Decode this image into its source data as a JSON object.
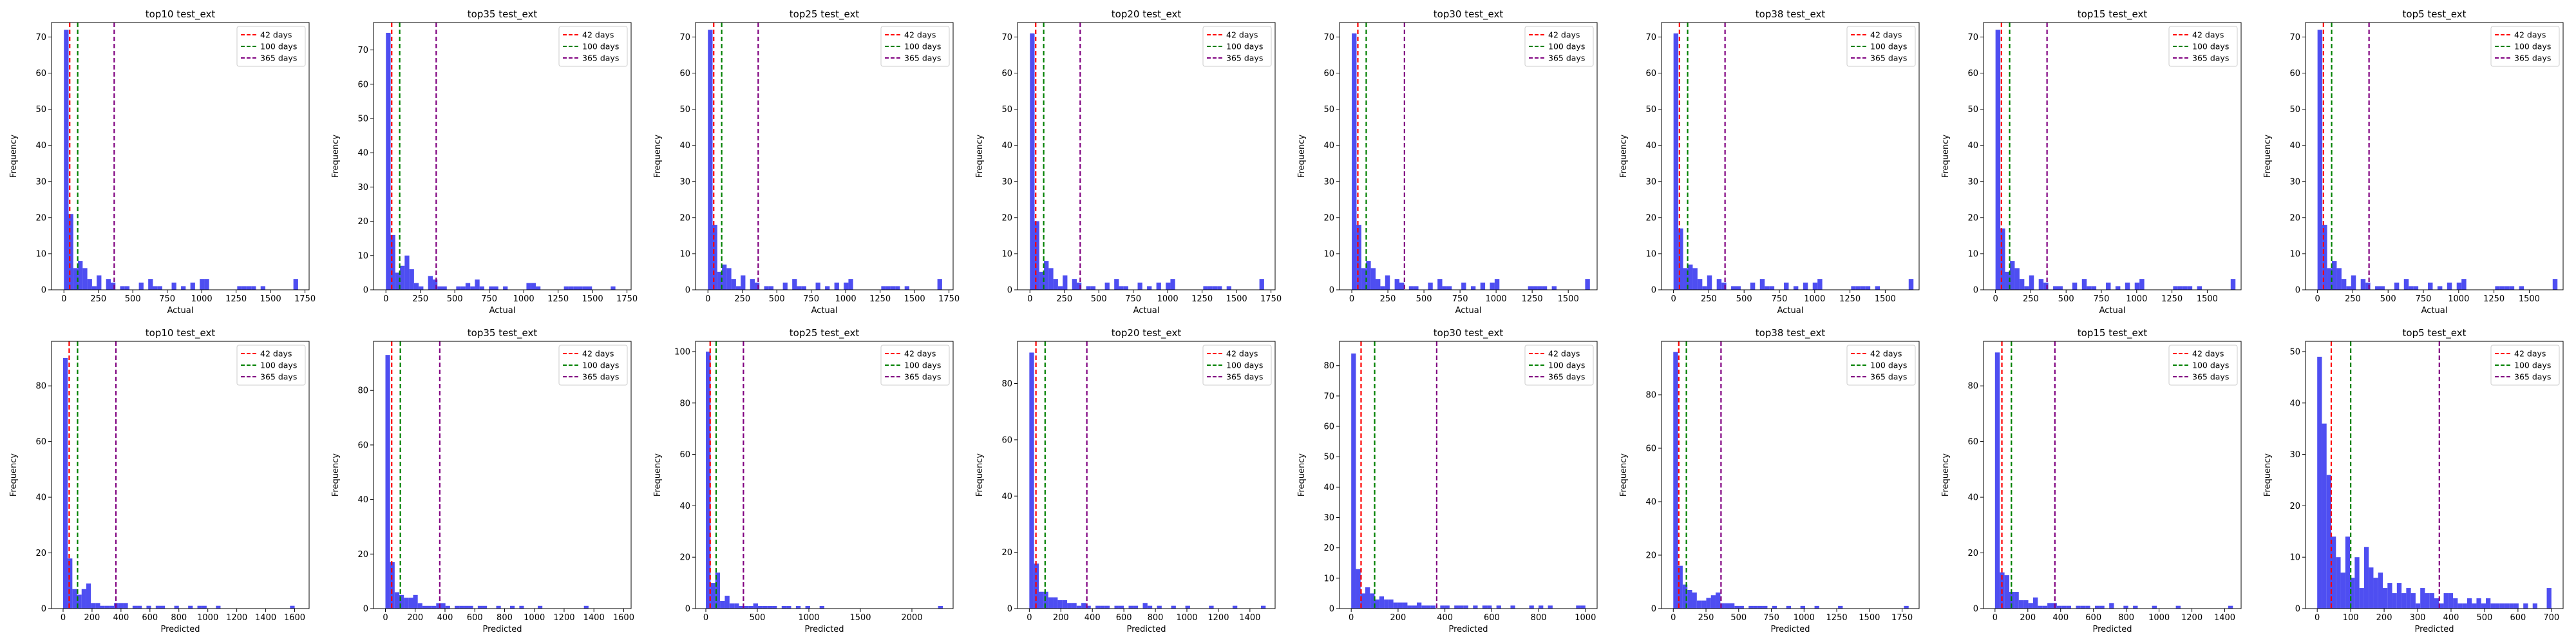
{
  "vline_labels": {
    "d42": "42 days",
    "d100": "100 days",
    "d365": "365 days"
  },
  "colors": {
    "bar": "#3b3bf0",
    "d42": "#ff0000",
    "d100": "#008000",
    "d365": "#800080"
  },
  "chart_data": [
    {
      "type": "bar",
      "title": "top10 test_ext",
      "xlabel": "Actual",
      "ylabel": "Frequency",
      "xlim": [
        -90,
        1780
      ],
      "ylim": [
        0,
        74
      ],
      "xticks": [
        0,
        250,
        500,
        750,
        1000,
        1250,
        1500,
        1750
      ],
      "yticks": [
        0,
        10,
        20,
        30,
        40,
        50,
        60,
        70
      ],
      "bin_width": 34,
      "bin_start": 0,
      "values": [
        72,
        21,
        6,
        8,
        6,
        3,
        1,
        4,
        0,
        3,
        2,
        0,
        1,
        1,
        0,
        0,
        2,
        0,
        3,
        1,
        1,
        0,
        0,
        2,
        0,
        1,
        0,
        2,
        0,
        3,
        3,
        0,
        0,
        0,
        0,
        0,
        0,
        1,
        1,
        1,
        1,
        0,
        1,
        0,
        0,
        0,
        0,
        0,
        0,
        3
      ],
      "legend_position": "top-right"
    },
    {
      "type": "bar",
      "title": "top35 test_ext",
      "xlabel": "Actual",
      "ylabel": "Frequency",
      "xlim": [
        -90,
        1780
      ],
      "ylim": [
        0,
        78
      ],
      "xticks": [
        0,
        250,
        500,
        750,
        1000,
        1250,
        1500,
        1750
      ],
      "yticks": [
        0,
        10,
        20,
        30,
        40,
        50,
        60,
        70
      ],
      "bin_width": 34,
      "bin_start": 0,
      "values": [
        75,
        16,
        5,
        7,
        10,
        6,
        2,
        1,
        0,
        4,
        3,
        1,
        1,
        0,
        0,
        1,
        1,
        2,
        1,
        3,
        1,
        0,
        1,
        1,
        0,
        1,
        0,
        0,
        0,
        0,
        2,
        2,
        1,
        0,
        0,
        0,
        0,
        0,
        1,
        1,
        1,
        1,
        1,
        1,
        0,
        0,
        0,
        0,
        1,
        0
      ],
      "legend_position": "top-right"
    },
    {
      "type": "bar",
      "title": "top25 test_ext",
      "xlabel": "Actual",
      "ylabel": "Frequency",
      "xlim": [
        -90,
        1780
      ],
      "ylim": [
        0,
        74
      ],
      "xticks": [
        0,
        250,
        500,
        750,
        1000,
        1250,
        1500,
        1750
      ],
      "yticks": [
        0,
        10,
        20,
        30,
        40,
        50,
        60,
        70
      ],
      "bin_width": 34,
      "bin_start": 0,
      "values": [
        72,
        18,
        5,
        7,
        6,
        3,
        1,
        4,
        0,
        3,
        2,
        0,
        1,
        1,
        0,
        0,
        2,
        0,
        3,
        1,
        1,
        0,
        0,
        2,
        0,
        1,
        0,
        2,
        0,
        2,
        3,
        0,
        0,
        0,
        0,
        0,
        0,
        1,
        1,
        1,
        1,
        0,
        1,
        0,
        0,
        0,
        0,
        0,
        0,
        3
      ],
      "legend_position": "top-right"
    },
    {
      "type": "bar",
      "title": "top20 test_ext",
      "xlabel": "Actual",
      "ylabel": "Frequency",
      "xlim": [
        -90,
        1780
      ],
      "ylim": [
        0,
        74
      ],
      "xticks": [
        0,
        250,
        500,
        750,
        1000,
        1250,
        1500,
        1750
      ],
      "yticks": [
        0,
        10,
        20,
        30,
        40,
        50,
        60,
        70
      ],
      "bin_width": 34,
      "bin_start": 0,
      "values": [
        71,
        19,
        5,
        8,
        6,
        3,
        1,
        4,
        0,
        3,
        2,
        0,
        1,
        1,
        0,
        0,
        2,
        0,
        3,
        1,
        1,
        0,
        0,
        2,
        0,
        1,
        0,
        2,
        0,
        2,
        3,
        0,
        0,
        0,
        0,
        0,
        0,
        1,
        1,
        1,
        1,
        0,
        1,
        0,
        0,
        0,
        0,
        0,
        0,
        3
      ],
      "legend_position": "top-right"
    },
    {
      "type": "bar",
      "title": "top30 test_ext",
      "xlabel": "Actual",
      "ylabel": "Frequency",
      "xlim": [
        -85,
        1700
      ],
      "ylim": [
        0,
        74
      ],
      "xticks": [
        0,
        250,
        500,
        750,
        1000,
        1250,
        1500
      ],
      "yticks": [
        0,
        10,
        20,
        30,
        40,
        50,
        60,
        70
      ],
      "bin_width": 33,
      "bin_start": 0,
      "values": [
        71,
        18,
        6,
        8,
        6,
        3,
        1,
        4,
        0,
        3,
        2,
        0,
        1,
        1,
        0,
        0,
        2,
        0,
        3,
        1,
        1,
        0,
        0,
        2,
        0,
        1,
        0,
        2,
        0,
        2,
        3,
        0,
        0,
        0,
        0,
        0,
        0,
        1,
        1,
        1,
        1,
        0,
        1,
        0,
        0,
        0,
        0,
        0,
        0,
        3
      ],
      "legend_position": "top-right"
    },
    {
      "type": "bar",
      "title": "top38 test_ext",
      "xlabel": "Actual",
      "ylabel": "Frequency",
      "xlim": [
        -85,
        1740
      ],
      "ylim": [
        0,
        74
      ],
      "xticks": [
        0,
        250,
        500,
        750,
        1000,
        1250,
        1500
      ],
      "yticks": [
        0,
        10,
        20,
        30,
        40,
        50,
        60,
        70
      ],
      "bin_width": 34,
      "bin_start": 0,
      "values": [
        71,
        17,
        6,
        7,
        6,
        3,
        1,
        4,
        0,
        3,
        2,
        0,
        1,
        1,
        0,
        0,
        2,
        0,
        3,
        1,
        1,
        0,
        0,
        2,
        0,
        1,
        0,
        2,
        0,
        2,
        3,
        0,
        0,
        0,
        0,
        0,
        0,
        1,
        1,
        1,
        1,
        0,
        1,
        0,
        0,
        0,
        0,
        0,
        0,
        3
      ],
      "legend_position": "top-right"
    },
    {
      "type": "bar",
      "title": "top15 test_ext",
      "xlabel": "Actual",
      "ylabel": "Frequency",
      "xlim": [
        -85,
        1740
      ],
      "ylim": [
        0,
        74
      ],
      "xticks": [
        0,
        250,
        500,
        750,
        1000,
        1250,
        1500
      ],
      "yticks": [
        0,
        10,
        20,
        30,
        40,
        50,
        60,
        70
      ],
      "bin_width": 34,
      "bin_start": 0,
      "values": [
        72,
        17,
        5,
        8,
        6,
        3,
        1,
        4,
        0,
        3,
        2,
        0,
        1,
        1,
        0,
        0,
        2,
        0,
        3,
        1,
        1,
        0,
        0,
        2,
        0,
        1,
        0,
        2,
        0,
        2,
        3,
        0,
        0,
        0,
        0,
        0,
        0,
        1,
        1,
        1,
        1,
        0,
        1,
        0,
        0,
        0,
        0,
        0,
        0,
        3
      ],
      "legend_position": "top-right"
    },
    {
      "type": "bar",
      "title": "top5 test_ext",
      "xlabel": "Actual",
      "ylabel": "Frequency",
      "xlim": [
        -85,
        1740
      ],
      "ylim": [
        0,
        74
      ],
      "xticks": [
        0,
        250,
        500,
        750,
        1000,
        1250,
        1500
      ],
      "yticks": [
        0,
        10,
        20,
        30,
        40,
        50,
        60,
        70
      ],
      "bin_width": 34,
      "bin_start": 0,
      "values": [
        72,
        18,
        6,
        8,
        6,
        3,
        1,
        4,
        0,
        3,
        2,
        0,
        1,
        1,
        0,
        0,
        2,
        0,
        3,
        1,
        1,
        0,
        0,
        2,
        0,
        1,
        0,
        2,
        0,
        2,
        3,
        0,
        0,
        0,
        0,
        0,
        0,
        1,
        1,
        1,
        1,
        0,
        1,
        0,
        0,
        0,
        0,
        0,
        0,
        3
      ],
      "legend_position": "top-right"
    },
    {
      "type": "bar",
      "title": "top10 test_ext",
      "xlabel": "Predicted",
      "ylabel": "Frequency",
      "xlim": [
        -80,
        1700
      ],
      "ylim": [
        0,
        96
      ],
      "xticks": [
        0,
        200,
        400,
        600,
        800,
        1000,
        1200,
        1400,
        1600
      ],
      "yticks": [
        0,
        20,
        40,
        60,
        80
      ],
      "bin_width": 32,
      "bin_start": 0,
      "values": [
        90,
        18,
        7,
        5,
        7,
        9,
        2,
        2,
        1,
        1,
        1,
        2,
        2,
        2,
        0,
        1,
        1,
        0,
        1,
        0,
        1,
        1,
        0,
        0,
        1,
        0,
        0,
        1,
        0,
        1,
        1,
        0,
        0,
        1,
        0,
        0,
        0,
        0,
        0,
        0,
        0,
        0,
        0,
        0,
        0,
        0,
        0,
        0,
        0,
        1
      ],
      "legend_position": "top-right"
    },
    {
      "type": "bar",
      "title": "top35 test_ext",
      "xlabel": "Predicted",
      "ylabel": "Frequency",
      "xlim": [
        -80,
        1650
      ],
      "ylim": [
        0,
        98
      ],
      "xticks": [
        0,
        200,
        400,
        600,
        800,
        1000,
        1200,
        1400,
        1600
      ],
      "yticks": [
        0,
        20,
        40,
        60,
        80
      ],
      "bin_width": 31,
      "bin_start": 0,
      "values": [
        93,
        17,
        6,
        5,
        4,
        4,
        5,
        2,
        1,
        1,
        1,
        2,
        2,
        1,
        0,
        1,
        1,
        1,
        1,
        0,
        1,
        1,
        0,
        0,
        1,
        0,
        0,
        1,
        0,
        1,
        0,
        0,
        0,
        1,
        0,
        0,
        0,
        0,
        0,
        0,
        0,
        0,
        0,
        1,
        0,
        0,
        0,
        0,
        0,
        0
      ],
      "legend_position": "top-right"
    },
    {
      "type": "bar",
      "title": "top25 test_ext",
      "xlabel": "Predicted",
      "ylabel": "Frequency",
      "xlim": [
        -100,
        2400
      ],
      "ylim": [
        0,
        104
      ],
      "xticks": [
        0,
        500,
        1000,
        1500,
        2000
      ],
      "yticks": [
        0,
        20,
        40,
        60,
        80,
        100
      ],
      "bin_width": 46,
      "bin_start": 0,
      "values": [
        100,
        10,
        14,
        3,
        5,
        2,
        2,
        1,
        1,
        1,
        2,
        1,
        1,
        1,
        1,
        0,
        1,
        1,
        0,
        1,
        0,
        1,
        0,
        0,
        1,
        0,
        0,
        0,
        0,
        0,
        0,
        0,
        0,
        0,
        0,
        0,
        0,
        0,
        0,
        0,
        0,
        0,
        0,
        0,
        0,
        0,
        0,
        0,
        0,
        1
      ],
      "legend_position": "top-right"
    },
    {
      "type": "bar",
      "title": "top20 test_ext",
      "xlabel": "Predicted",
      "ylabel": "Frequency",
      "xlim": [
        -75,
        1560
      ],
      "ylim": [
        0,
        95
      ],
      "xticks": [
        0,
        200,
        400,
        600,
        800,
        1000,
        1200,
        1400
      ],
      "yticks": [
        0,
        20,
        40,
        60,
        80
      ],
      "bin_width": 30,
      "bin_start": 0,
      "values": [
        91,
        16,
        6,
        6,
        4,
        4,
        3,
        3,
        2,
        2,
        1,
        2,
        1,
        0,
        1,
        1,
        1,
        0,
        1,
        1,
        0,
        1,
        1,
        0,
        2,
        1,
        0,
        1,
        0,
        0,
        1,
        0,
        0,
        1,
        0,
        0,
        0,
        0,
        1,
        0,
        0,
        0,
        0,
        1,
        0,
        0,
        0,
        0,
        0,
        1
      ],
      "legend_position": "top-right"
    },
    {
      "type": "bar",
      "title": "top30 test_ext",
      "xlabel": "Predicted",
      "ylabel": "Frequency",
      "xlim": [
        -50,
        1050
      ],
      "ylim": [
        0,
        88
      ],
      "xticks": [
        0,
        200,
        400,
        600,
        800,
        1000
      ],
      "yticks": [
        0,
        10,
        20,
        30,
        40,
        50,
        60,
        70,
        80
      ],
      "bin_width": 20,
      "bin_start": 0,
      "values": [
        84,
        13,
        5,
        7,
        5,
        3,
        4,
        3,
        3,
        2,
        2,
        2,
        1,
        1,
        2,
        1,
        1,
        1,
        0,
        1,
        1,
        0,
        1,
        1,
        1,
        0,
        1,
        0,
        1,
        1,
        0,
        1,
        0,
        0,
        1,
        0,
        0,
        0,
        1,
        0,
        1,
        0,
        1,
        0,
        0,
        0,
        0,
        0,
        1,
        1
      ],
      "legend_position": "top-right"
    },
    {
      "type": "bar",
      "title": "top38 test_ext",
      "xlabel": "Predicted",
      "ylabel": "Frequency",
      "xlim": [
        -90,
        1880
      ],
      "ylim": [
        0,
        100
      ],
      "xticks": [
        0,
        250,
        500,
        750,
        1000,
        1250,
        1500,
        1750
      ],
      "yticks": [
        0,
        20,
        40,
        60,
        80
      ],
      "bin_width": 36,
      "bin_start": 0,
      "values": [
        96,
        16,
        9,
        7,
        6,
        3,
        3,
        4,
        5,
        6,
        2,
        2,
        2,
        1,
        1,
        0,
        1,
        1,
        1,
        1,
        0,
        1,
        0,
        0,
        1,
        0,
        0,
        1,
        0,
        0,
        1,
        0,
        0,
        0,
        0,
        1,
        0,
        0,
        0,
        0,
        0,
        0,
        0,
        0,
        0,
        0,
        0,
        0,
        0,
        1
      ],
      "legend_position": "top-right"
    },
    {
      "type": "bar",
      "title": "top15 test_ext",
      "xlabel": "Predicted",
      "ylabel": "Frequency",
      "xlim": [
        -70,
        1500
      ],
      "ylim": [
        0,
        96
      ],
      "xticks": [
        0,
        200,
        400,
        600,
        800,
        1000,
        1200,
        1400
      ],
      "yticks": [
        0,
        20,
        40,
        60,
        80
      ],
      "bin_width": 29,
      "bin_start": 0,
      "values": [
        92,
        13,
        12,
        6,
        6,
        3,
        3,
        2,
        4,
        1,
        1,
        2,
        2,
        1,
        1,
        1,
        0,
        1,
        1,
        1,
        0,
        1,
        1,
        0,
        2,
        0,
        0,
        1,
        0,
        1,
        0,
        0,
        0,
        1,
        0,
        0,
        0,
        0,
        1,
        0,
        0,
        0,
        0,
        0,
        0,
        0,
        0,
        0,
        0,
        1
      ],
      "legend_position": "top-right"
    },
    {
      "type": "bar",
      "title": "top5 test_ext",
      "xlabel": "Predicted",
      "ylabel": "Frequency",
      "xlim": [
        -35,
        735
      ],
      "ylim": [
        0,
        52
      ],
      "xticks": [
        0,
        100,
        200,
        300,
        400,
        500,
        600,
        700
      ],
      "yticks": [
        0,
        10,
        20,
        30,
        40,
        50
      ],
      "bin_width": 14,
      "bin_start": 0,
      "values": [
        49,
        36,
        26,
        14,
        10,
        7,
        14,
        6,
        10,
        4,
        12,
        8,
        6,
        7,
        4,
        5,
        3,
        5,
        3,
        4,
        3,
        1,
        4,
        3,
        3,
        2,
        1,
        3,
        3,
        2,
        1,
        1,
        2,
        1,
        2,
        1,
        2,
        1,
        1,
        1,
        1,
        1,
        1,
        0,
        1,
        0,
        1,
        0,
        0,
        4
      ],
      "legend_position": "top-right"
    }
  ]
}
